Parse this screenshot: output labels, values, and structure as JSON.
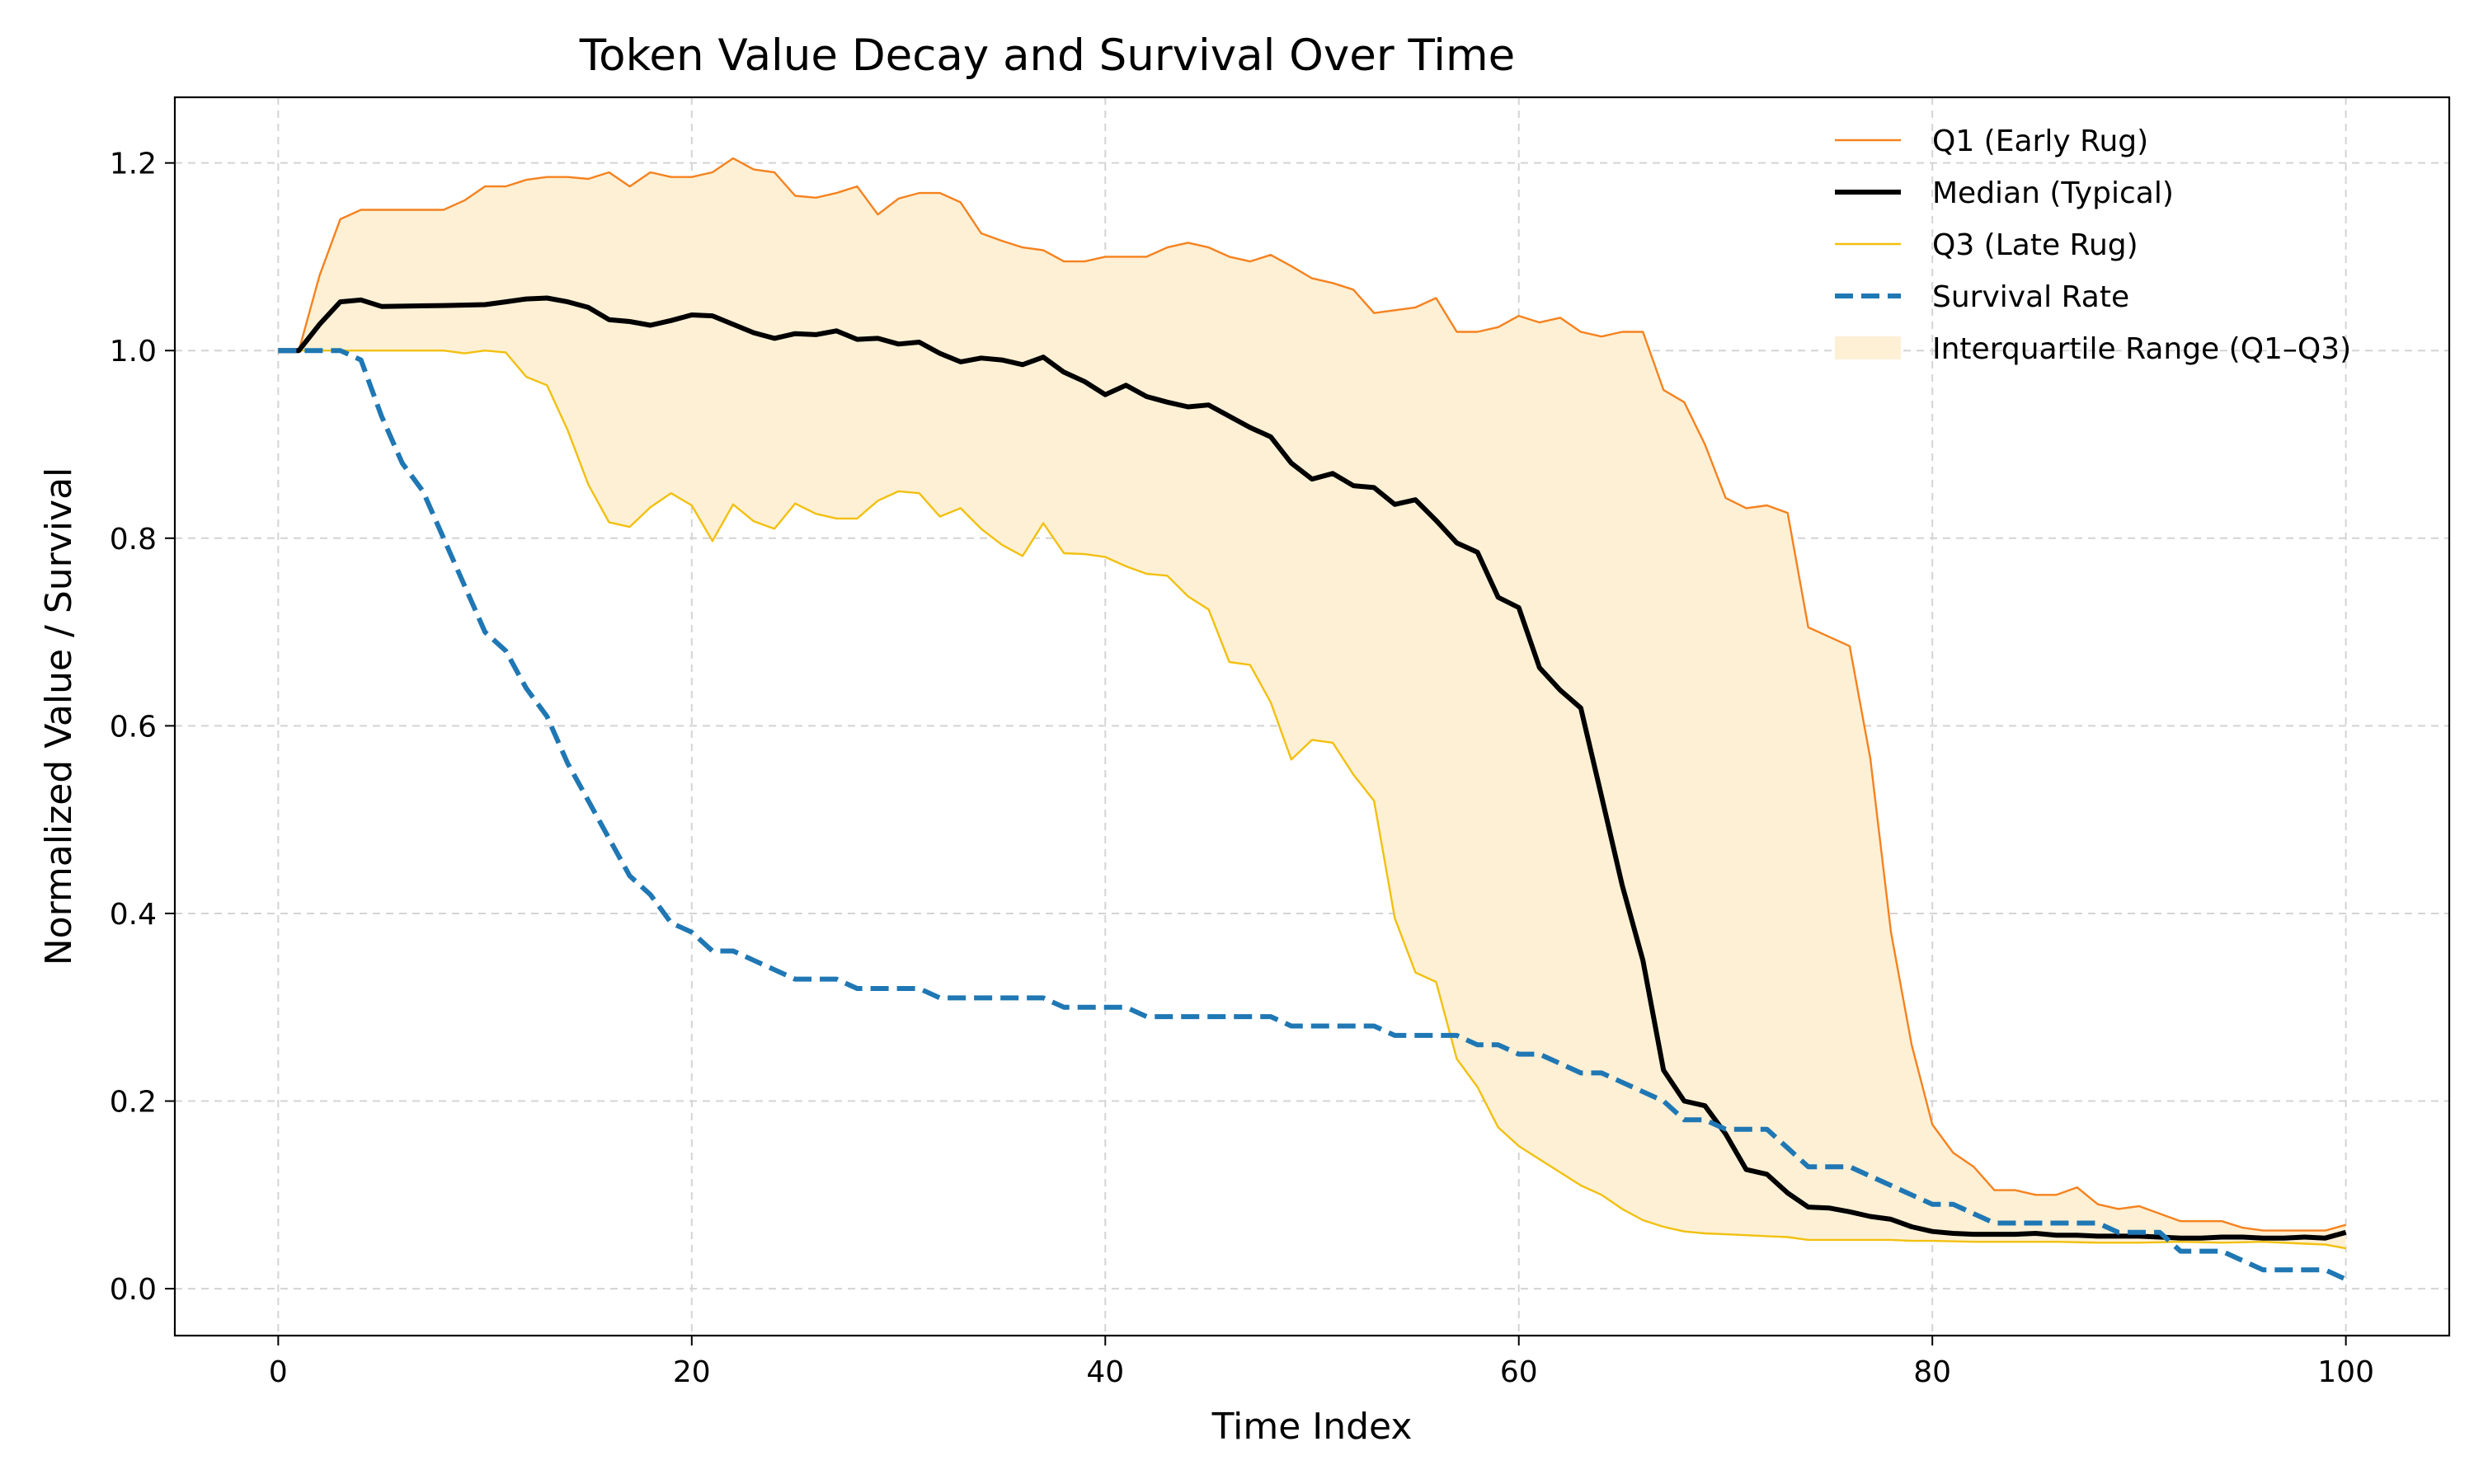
{
  "chart_data": {
    "type": "line",
    "title": "Token Value Decay and Survival Over Time",
    "xlabel": "Time Index",
    "ylabel": "Normalized Value / Survival",
    "xlim": [
      -5,
      105
    ],
    "ylim": [
      -0.05,
      1.27
    ],
    "xticks": [
      0,
      20,
      40,
      60,
      80,
      100
    ],
    "yticks": [
      0.0,
      0.2,
      0.4,
      0.6,
      0.8,
      1.0,
      1.2
    ],
    "grid": true,
    "legend_position": "top-right",
    "band": {
      "name": "Interquartile Range (Q1–Q3)",
      "color": "#fdf0d5",
      "lower_series": "q3",
      "upper_series": "q1"
    },
    "series": [
      {
        "id": "q1",
        "name": "Q1 (Early Rug)",
        "color": "#f5821f",
        "style": "solid",
        "weight": "thin",
        "x": [
          0,
          1,
          2,
          3,
          4,
          6,
          8,
          9,
          10,
          11,
          12,
          13,
          14,
          15,
          16,
          17,
          18,
          19,
          20,
          21,
          22,
          23,
          24,
          25,
          26,
          27,
          28,
          29,
          30,
          31,
          32,
          33,
          34,
          35,
          36,
          37,
          38,
          39,
          40,
          42,
          43,
          44,
          45,
          46,
          47,
          48,
          49,
          50,
          51,
          52,
          53,
          54,
          55,
          56,
          57,
          58,
          59,
          60,
          61,
          62,
          63,
          64,
          65,
          66,
          67,
          68,
          69,
          70,
          71,
          72,
          73,
          74,
          75,
          76,
          77,
          78,
          79,
          80,
          81,
          82,
          83,
          84,
          85,
          86,
          87,
          88,
          89,
          90,
          91,
          92,
          93,
          94,
          95,
          96,
          97,
          98,
          99,
          100
        ],
        "y": [
          1.0,
          1.0,
          1.08,
          1.14,
          1.15,
          1.15,
          1.15,
          1.16,
          1.175,
          1.175,
          1.182,
          1.185,
          1.185,
          1.183,
          1.19,
          1.175,
          1.19,
          1.185,
          1.185,
          1.19,
          1.205,
          1.193,
          1.19,
          1.165,
          1.163,
          1.168,
          1.175,
          1.145,
          1.162,
          1.168,
          1.168,
          1.158,
          1.125,
          1.117,
          1.11,
          1.107,
          1.095,
          1.095,
          1.1,
          1.1,
          1.11,
          1.115,
          1.11,
          1.1,
          1.095,
          1.102,
          1.09,
          1.077,
          1.072,
          1.065,
          1.04,
          1.043,
          1.046,
          1.056,
          1.02,
          1.02,
          1.025,
          1.037,
          1.03,
          1.035,
          1.02,
          1.015,
          1.02,
          1.02,
          0.958,
          0.945,
          0.9,
          0.843,
          0.832,
          0.835,
          0.827,
          0.705,
          0.695,
          0.685,
          0.565,
          0.38,
          0.26,
          0.175,
          0.145,
          0.13,
          0.105,
          0.105,
          0.1,
          0.1,
          0.108,
          0.09,
          0.085,
          0.088,
          0.08,
          0.072,
          0.072,
          0.072,
          0.065,
          0.062,
          0.062,
          0.062,
          0.062,
          0.068
        ]
      },
      {
        "id": "median",
        "name": "Median (Typical)",
        "color": "#000000",
        "style": "solid",
        "weight": "thick",
        "x": [
          0,
          1,
          2,
          3,
          4,
          5,
          8,
          10,
          11,
          12,
          13,
          14,
          15,
          16,
          17,
          18,
          19,
          20,
          21,
          22,
          23,
          24,
          25,
          26,
          27,
          28,
          29,
          30,
          31,
          32,
          33,
          34,
          35,
          36,
          37,
          38,
          39,
          40,
          41,
          42,
          43,
          44,
          45,
          46,
          47,
          48,
          49,
          50,
          51,
          52,
          53,
          54,
          55,
          56,
          57,
          58,
          59,
          60,
          61,
          62,
          63,
          64,
          65,
          66,
          67,
          68,
          69,
          70,
          71,
          72,
          73,
          74,
          75,
          76,
          77,
          78,
          79,
          80,
          81,
          82,
          83,
          84,
          85,
          86,
          87,
          88,
          89,
          90,
          91,
          92,
          93,
          94,
          95,
          96,
          97,
          98,
          99,
          100
        ],
        "y": [
          1.0,
          1.0,
          1.028,
          1.052,
          1.054,
          1.047,
          1.048,
          1.049,
          1.052,
          1.055,
          1.056,
          1.052,
          1.046,
          1.033,
          1.031,
          1.027,
          1.032,
          1.038,
          1.037,
          1.028,
          1.019,
          1.013,
          1.018,
          1.017,
          1.021,
          1.012,
          1.013,
          1.007,
          1.009,
          0.997,
          0.988,
          0.992,
          0.99,
          0.985,
          0.993,
          0.977,
          0.967,
          0.953,
          0.963,
          0.951,
          0.945,
          0.94,
          0.942,
          0.93,
          0.918,
          0.908,
          0.88,
          0.863,
          0.869,
          0.856,
          0.854,
          0.836,
          0.841,
          0.819,
          0.795,
          0.785,
          0.737,
          0.726,
          0.662,
          0.638,
          0.619,
          0.525,
          0.43,
          0.35,
          0.233,
          0.2,
          0.195,
          0.165,
          0.127,
          0.122,
          0.102,
          0.087,
          0.086,
          0.082,
          0.077,
          0.074,
          0.066,
          0.061,
          0.059,
          0.058,
          0.058,
          0.058,
          0.059,
          0.057,
          0.057,
          0.056,
          0.056,
          0.056,
          0.055,
          0.054,
          0.054,
          0.055,
          0.055,
          0.054,
          0.054,
          0.055,
          0.054,
          0.06
        ]
      },
      {
        "id": "q3",
        "name": "Q3 (Late Rug)",
        "color": "#f2c00f",
        "style": "solid",
        "weight": "thin",
        "x": [
          0,
          3,
          5,
          8,
          9,
          10,
          11,
          12,
          13,
          14,
          15,
          16,
          17,
          18,
          19,
          20,
          21,
          22,
          23,
          24,
          25,
          26,
          27,
          28,
          29,
          30,
          31,
          32,
          33,
          34,
          35,
          36,
          37,
          38,
          39,
          40,
          41,
          42,
          43,
          44,
          45,
          46,
          47,
          48,
          49,
          50,
          51,
          52,
          53,
          54,
          55,
          56,
          57,
          58,
          59,
          60,
          61,
          62,
          63,
          64,
          65,
          66,
          67,
          68,
          69,
          70,
          71,
          72,
          73,
          74,
          75,
          76,
          77,
          78,
          79,
          80,
          82,
          84,
          86,
          88,
          90,
          92,
          94,
          96,
          98,
          99,
          100
        ],
        "y": [
          1.0,
          1.0,
          1.0,
          1.0,
          0.997,
          1.0,
          0.998,
          0.972,
          0.963,
          0.915,
          0.857,
          0.817,
          0.812,
          0.833,
          0.848,
          0.835,
          0.797,
          0.836,
          0.818,
          0.81,
          0.837,
          0.826,
          0.821,
          0.821,
          0.84,
          0.85,
          0.848,
          0.823,
          0.832,
          0.81,
          0.793,
          0.781,
          0.816,
          0.784,
          0.783,
          0.78,
          0.77,
          0.762,
          0.76,
          0.738,
          0.724,
          0.668,
          0.665,
          0.625,
          0.564,
          0.585,
          0.582,
          0.548,
          0.52,
          0.395,
          0.337,
          0.327,
          0.245,
          0.215,
          0.172,
          0.152,
          0.138,
          0.124,
          0.11,
          0.1,
          0.085,
          0.073,
          0.066,
          0.061,
          0.059,
          0.058,
          0.057,
          0.056,
          0.055,
          0.052,
          0.052,
          0.052,
          0.052,
          0.052,
          0.051,
          0.051,
          0.05,
          0.05,
          0.05,
          0.049,
          0.049,
          0.05,
          0.049,
          0.05,
          0.048,
          0.047,
          0.043
        ]
      },
      {
        "id": "survival",
        "name": "Survival Rate",
        "color": "#1f77b4",
        "style": "dashed",
        "weight": "thick",
        "x": [
          0,
          1,
          2,
          3,
          4,
          5,
          6,
          7,
          8,
          9,
          10,
          11,
          12,
          13,
          14,
          15,
          16,
          17,
          18,
          19,
          20,
          21,
          22,
          23,
          24,
          25,
          26,
          27,
          28,
          29,
          30,
          31,
          32,
          33,
          34,
          35,
          36,
          37,
          38,
          39,
          40,
          41,
          42,
          43,
          44,
          45,
          46,
          47,
          48,
          49,
          50,
          51,
          52,
          53,
          54,
          55,
          56,
          57,
          58,
          59,
          60,
          61,
          62,
          63,
          64,
          65,
          66,
          67,
          68,
          69,
          70,
          71,
          72,
          73,
          74,
          75,
          76,
          77,
          78,
          79,
          80,
          81,
          82,
          83,
          84,
          85,
          86,
          87,
          88,
          89,
          90,
          91,
          92,
          93,
          94,
          95,
          96,
          97,
          98,
          99,
          100
        ],
        "y": [
          1.0,
          1.0,
          1.0,
          1.0,
          0.99,
          0.93,
          0.88,
          0.85,
          0.8,
          0.75,
          0.7,
          0.68,
          0.64,
          0.61,
          0.56,
          0.52,
          0.48,
          0.44,
          0.42,
          0.39,
          0.38,
          0.36,
          0.36,
          0.35,
          0.34,
          0.33,
          0.33,
          0.33,
          0.32,
          0.32,
          0.32,
          0.32,
          0.31,
          0.31,
          0.31,
          0.31,
          0.31,
          0.31,
          0.3,
          0.3,
          0.3,
          0.3,
          0.29,
          0.29,
          0.29,
          0.29,
          0.29,
          0.29,
          0.29,
          0.28,
          0.28,
          0.28,
          0.28,
          0.28,
          0.27,
          0.27,
          0.27,
          0.27,
          0.26,
          0.26,
          0.25,
          0.25,
          0.24,
          0.23,
          0.23,
          0.22,
          0.21,
          0.2,
          0.18,
          0.18,
          0.17,
          0.17,
          0.17,
          0.15,
          0.13,
          0.13,
          0.13,
          0.12,
          0.11,
          0.1,
          0.09,
          0.09,
          0.08,
          0.07,
          0.07,
          0.07,
          0.07,
          0.07,
          0.07,
          0.06,
          0.06,
          0.06,
          0.04,
          0.04,
          0.04,
          0.03,
          0.02,
          0.02,
          0.02,
          0.02,
          0.01
        ]
      }
    ]
  }
}
